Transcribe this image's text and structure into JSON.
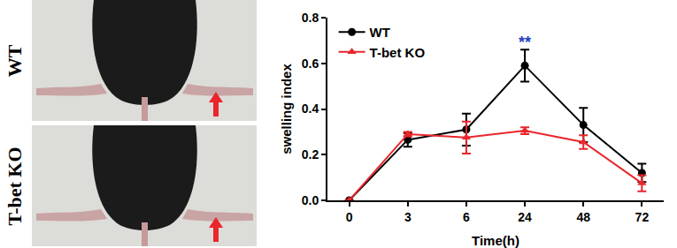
{
  "chart_data": {
    "type": "line",
    "x_label": "Time(h)",
    "y_label": "swelling index",
    "categories": [
      "0",
      "3",
      "6",
      "24",
      "48",
      "72"
    ],
    "series": [
      {
        "name": "WT",
        "color": "#000000",
        "marker": "circle",
        "values": [
          0,
          0.265,
          0.31,
          0.59,
          0.33,
          0.12
        ],
        "error": [
          0,
          0.03,
          0.07,
          0.07,
          0.075,
          0.04
        ]
      },
      {
        "name": "T-bet KO",
        "color": "#e8262c",
        "marker": "triangle-up",
        "values": [
          0,
          0.29,
          0.275,
          0.305,
          0.255,
          0.075
        ],
        "error": [
          0,
          0.01,
          0.07,
          0.015,
          0.03,
          0.035
        ]
      }
    ],
    "ylim": [
      0,
      0.8
    ],
    "yticks": [
      {
        "value": 0,
        "label": "0.0"
      },
      {
        "value": 0.2,
        "label": "0.2"
      },
      {
        "value": 0.4,
        "label": "0.4"
      },
      {
        "value": 0.6,
        "label": "0.6"
      },
      {
        "value": 0.8,
        "label": "0.8"
      }
    ],
    "legend": "upper left",
    "annotations": [
      {
        "text": "**",
        "x": "24",
        "y": 0.69,
        "color": "#1f3fbf"
      }
    ]
  },
  "photo_panels": [
    {
      "label": "WT"
    },
    {
      "label": "T-bet KO"
    }
  ]
}
